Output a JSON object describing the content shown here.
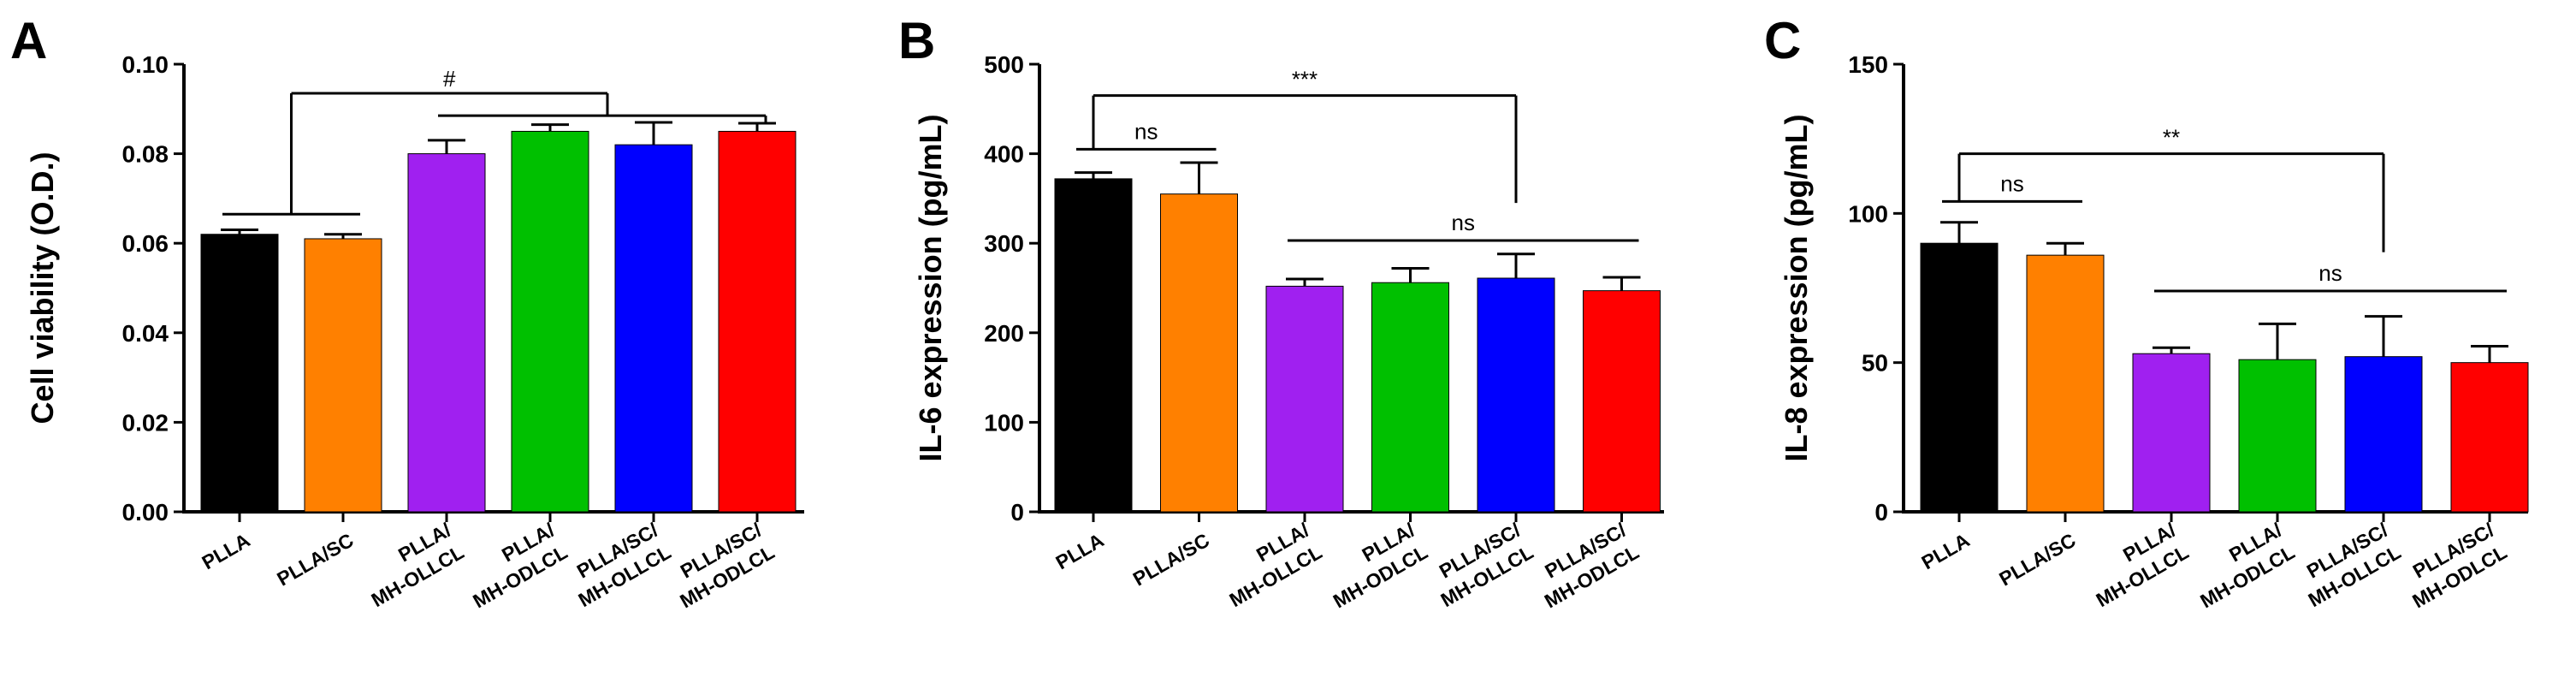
{
  "chart_data": [
    {
      "type": "bar",
      "panel": "A",
      "title": "",
      "xlabel": "",
      "ylabel": "Cell viability (O.D.)",
      "ylim": [
        0,
        0.1
      ],
      "yticks": [
        "0.00",
        "0.02",
        "0.04",
        "0.06",
        "0.08",
        "0.10"
      ],
      "categories": [
        [
          "PLLA"
        ],
        [
          "PLLA/SC"
        ],
        [
          "PLLA/",
          "MH-OLLCL"
        ],
        [
          "PLLA/",
          "MH-ODLCL"
        ],
        [
          "PLLA/SC/",
          "MH-OLLCL"
        ],
        [
          "PLLA/SC/",
          "MH-ODLCL"
        ]
      ],
      "values": [
        0.062,
        0.061,
        0.08,
        0.085,
        0.082,
        0.085
      ],
      "errors": [
        0.001,
        0.001,
        0.003,
        0.0015,
        0.005,
        0.0018
      ],
      "colors": [
        "#000000",
        "#ff8000",
        "#a020f0",
        "#00c000",
        "#0000ff",
        "#ff0000"
      ],
      "significance": [
        {
          "label": "#",
          "from": [
            0,
            1
          ],
          "to": [
            2,
            5
          ],
          "y1": 0.0665,
          "y2": 0.0935,
          "y3": 0.0885,
          "drop": 0.0868
        }
      ]
    },
    {
      "type": "bar",
      "panel": "B",
      "title": "",
      "xlabel": "",
      "ylabel": "IL-6 expression (pg/mL)",
      "ylim": [
        0,
        500
      ],
      "yticks": [
        "0",
        "100",
        "200",
        "300",
        "400",
        "500"
      ],
      "categories": [
        [
          "PLLA"
        ],
        [
          "PLLA/SC"
        ],
        [
          "PLLA/",
          "MH-OLLCL"
        ],
        [
          "PLLA/",
          "MH-ODLCL"
        ],
        [
          "PLLA/SC/",
          "MH-OLLCL"
        ],
        [
          "PLLA/SC/",
          "MH-ODLCL"
        ]
      ],
      "values": [
        372,
        355,
        252,
        256,
        261,
        247
      ],
      "errors": [
        7,
        35,
        8,
        16,
        27,
        15
      ],
      "colors": [
        "#000000",
        "#ff8000",
        "#a020f0",
        "#00c000",
        "#0000ff",
        "#ff0000"
      ],
      "significance": [
        {
          "label": "ns",
          "type": "line",
          "a": 0,
          "b": 1,
          "y": 405
        },
        {
          "label": "***",
          "type": "bracket",
          "a": 0,
          "b": 4,
          "y": 465,
          "down_to": 345
        },
        {
          "label": "ns",
          "type": "line",
          "a": 2,
          "b": 5,
          "y": 303
        }
      ]
    },
    {
      "type": "bar",
      "panel": "C",
      "title": "",
      "xlabel": "",
      "ylabel": "IL-8 expression (pg/mL)",
      "ylim": [
        0,
        150
      ],
      "yticks": [
        "0",
        "50",
        "100",
        "150"
      ],
      "categories": [
        [
          "PLLA"
        ],
        [
          "PLLA/SC"
        ],
        [
          "PLLA/",
          "MH-OLLCL"
        ],
        [
          "PLLA/",
          "MH-ODLCL"
        ],
        [
          "PLLA/SC/",
          "MH-OLLCL"
        ],
        [
          "PLLA/SC/",
          "MH-ODLCL"
        ]
      ],
      "values": [
        90,
        86,
        53,
        51,
        52,
        50
      ],
      "errors": [
        7,
        4,
        2,
        12,
        13.5,
        5.5
      ],
      "colors": [
        "#000000",
        "#ff8000",
        "#a020f0",
        "#00c000",
        "#0000ff",
        "#ff0000"
      ],
      "significance": [
        {
          "label": "ns",
          "type": "line",
          "a": 0,
          "b": 1,
          "y": 104
        },
        {
          "label": "**",
          "type": "bracket",
          "a": 0,
          "b": 4,
          "y": 120,
          "down_to": 87
        },
        {
          "label": "ns",
          "type": "line",
          "a": 2,
          "b": 5,
          "y": 74
        }
      ]
    }
  ]
}
